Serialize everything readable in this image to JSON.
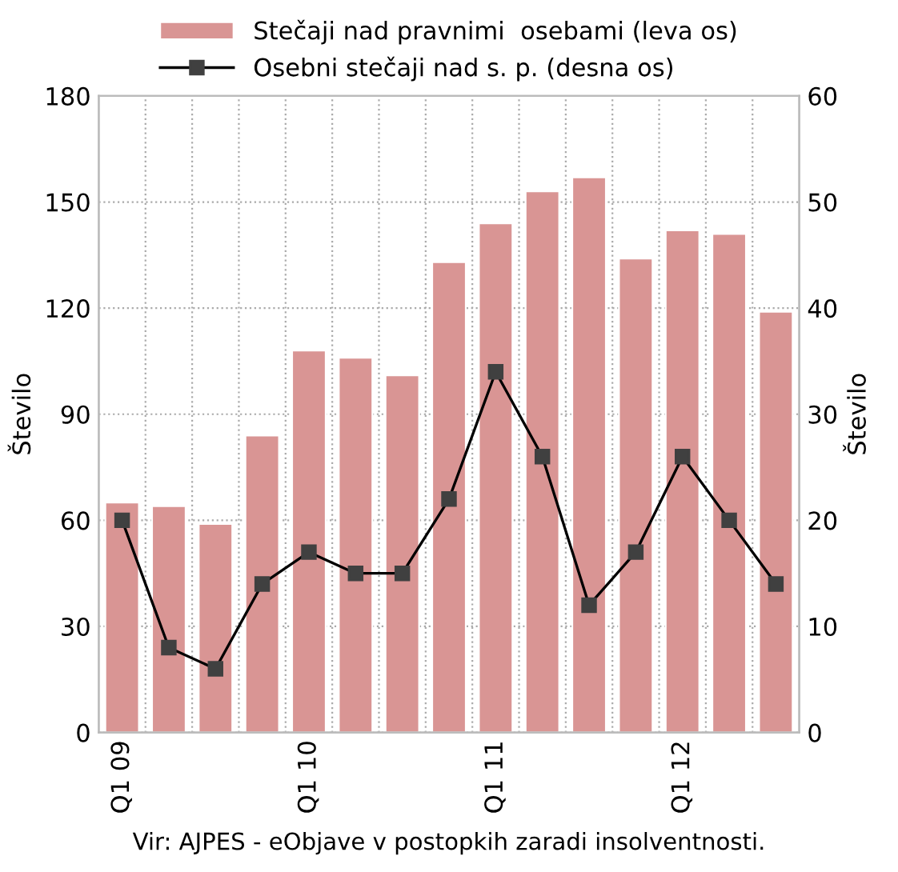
{
  "chart_data": {
    "type": "bar",
    "categories": [
      "Q1 09",
      null,
      null,
      null,
      "Q1 10",
      null,
      null,
      null,
      "Q1 11",
      null,
      null,
      null,
      "Q1 12",
      null,
      null
    ],
    "series": [
      {
        "name": "Stečaji nad pravnimi  osebami (leva os)",
        "color": "#d99594",
        "values": [
          65,
          64,
          59,
          84,
          108,
          106,
          101,
          133,
          144,
          153,
          157,
          134,
          142,
          141,
          119
        ]
      },
      {
        "name": "Osebni stečaji nad s. p. (desna os)",
        "type": "line",
        "axis": "y2",
        "color": "#000000",
        "marker": "square",
        "values": [
          20,
          8,
          6,
          14,
          17,
          15,
          15,
          22,
          34,
          26,
          12,
          17,
          26,
          20,
          14
        ]
      }
    ],
    "ylabel": "Število",
    "y2label": "Število",
    "ylim": [
      0,
      180
    ],
    "yticks": [
      0,
      30,
      60,
      90,
      120,
      150,
      180
    ],
    "y2lim": [
      0,
      60
    ],
    "y2ticks": [
      0,
      10,
      20,
      30,
      40,
      50,
      60
    ],
    "grid": true,
    "legend": "top",
    "annotations": [
      "Vir: AJPES - eObjave v postopkih zaradi insolventnosti."
    ]
  }
}
